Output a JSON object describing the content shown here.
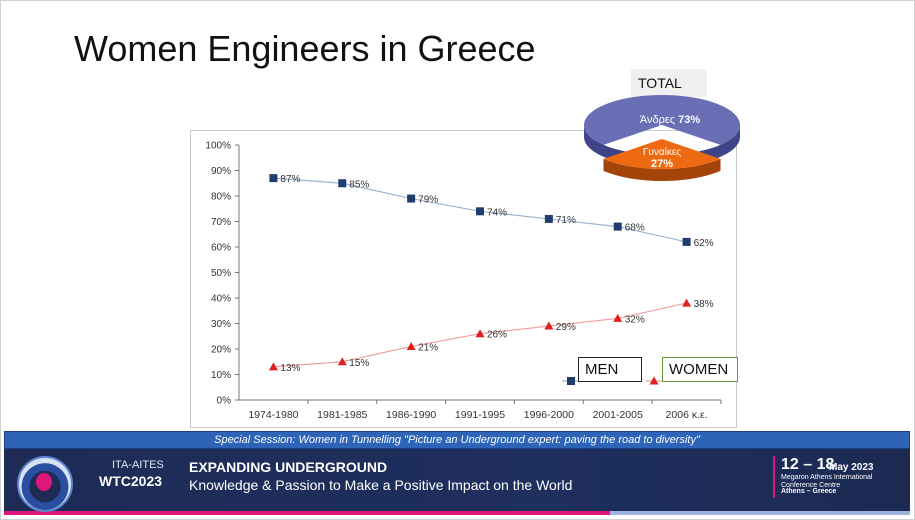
{
  "slide": {
    "title": "Women Engineers in Greece"
  },
  "chart_data": [
    {
      "type": "line",
      "categories": [
        "1974-1980",
        "1981-1985",
        "1986-1990",
        "1991-1995",
        "1996-2000",
        "2001-2005",
        "2006 κ.ε."
      ],
      "y_ticks": [
        "0%",
        "10%",
        "20%",
        "30%",
        "40%",
        "50%",
        "60%",
        "70%",
        "80%",
        "90%",
        "100%"
      ],
      "ylim": [
        0,
        100
      ],
      "series": [
        {
          "name": "MEN",
          "values": [
            87,
            85,
            79,
            74,
            71,
            68,
            62
          ],
          "labels": [
            "87%",
            "85%",
            "79%",
            "74%",
            "71%",
            "68%",
            "62%"
          ],
          "color": "#1f3d6e",
          "line_color": "#9fb3d1",
          "marker": "square"
        },
        {
          "name": "WOMEN",
          "values": [
            13,
            15,
            21,
            26,
            29,
            32,
            38
          ],
          "labels": [
            "13%",
            "15%",
            "21%",
            "26%",
            "29%",
            "32%",
            "38%"
          ],
          "color": "#e02020",
          "line_color": "#f0a0a0",
          "marker": "triangle"
        }
      ],
      "legend": {
        "men": "MEN",
        "women": "WOMEN"
      }
    },
    {
      "type": "pie",
      "title": "TOTAL",
      "slices": [
        {
          "label": "Άνδρες",
          "value": 73,
          "value_label": "73%",
          "color": "#6a6fb5"
        },
        {
          "label": "Γυναίκες",
          "value": 27,
          "value_label": "27%",
          "color": "#ee6a12"
        }
      ]
    }
  ],
  "banner": {
    "session": "Special Session: Women in Tunnelling \"Picture an Underground expert: paving the road to diversity\"",
    "org_line1": "ITA-AITES",
    "org_line2": "WTC2023",
    "headline": "EXPANDING UNDERGROUND",
    "tagline": "Knowledge & Passion to Make a Positive Impact on the World",
    "dates": "12 – 18",
    "month": "May 2023",
    "venue": "Megaron Athens International Conference Centre",
    "place": "Athens – Greece",
    "colors": {
      "navy": "#1d2b55",
      "accent": "#e0177a",
      "blue": "#2e64b8"
    }
  }
}
